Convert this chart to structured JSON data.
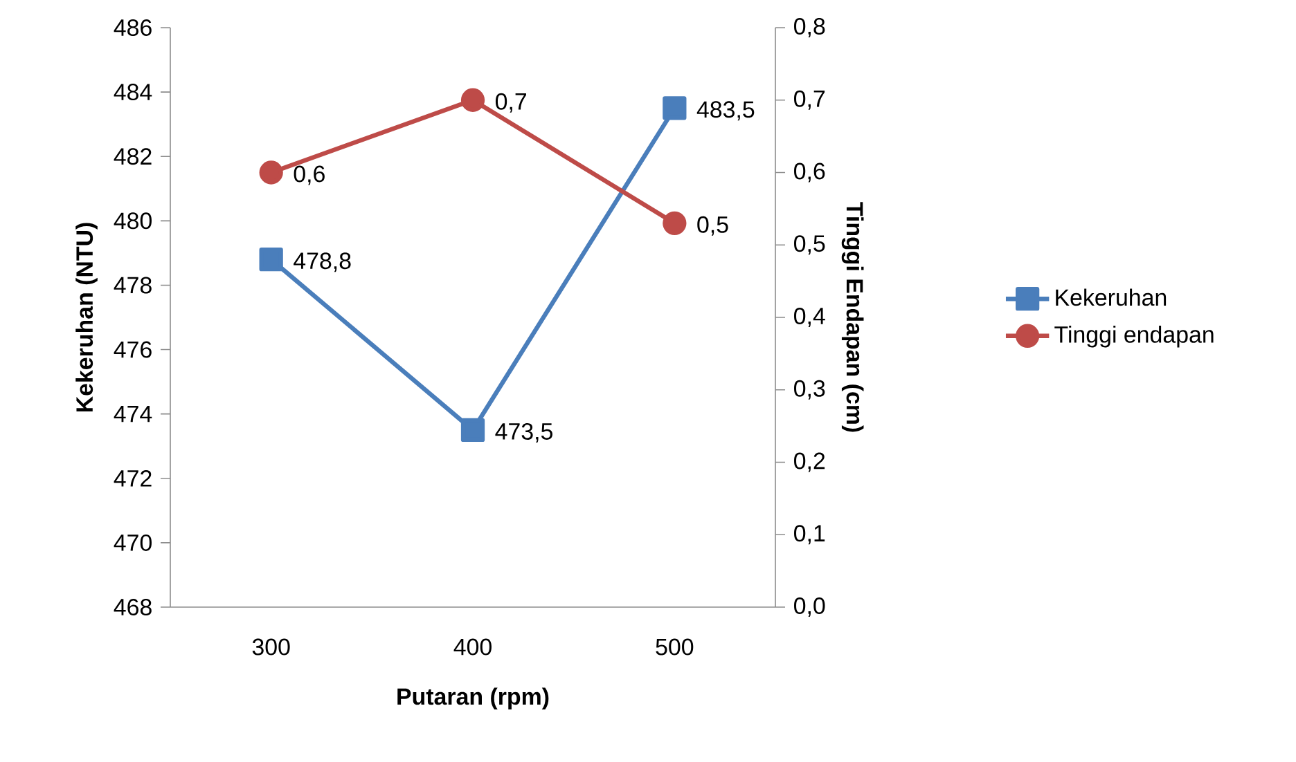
{
  "chart_data": {
    "type": "line",
    "xlabel": "Putaran (rpm)",
    "ylabel": "Kekeruhan (NTU)",
    "y2label": "Tinggi Endapan (cm)",
    "categories": [
      "300",
      "400",
      "500"
    ],
    "series": [
      {
        "name": "Kekeruhan",
        "color": "#4a7ebb",
        "marker": "square",
        "values": [
          478.8,
          473.5,
          483.5
        ],
        "value_labels": [
          "478,8",
          "473,5",
          "483,5"
        ]
      },
      {
        "name": "Tinggi endapan",
        "color": "#be4b48",
        "marker": "circle",
        "axis": "y2",
        "values": [
          0.6,
          0.7,
          0.53
        ],
        "value_labels": [
          "0,6",
          "0,7",
          "0,5"
        ]
      }
    ],
    "ylim": [
      468,
      486
    ],
    "yticks": [
      468,
      470,
      472,
      474,
      476,
      478,
      480,
      482,
      484,
      486
    ],
    "y2lim": [
      0,
      0.8
    ],
    "y2ticks": [
      {
        "value": 0,
        "label": "0,0"
      },
      {
        "value": 0.1,
        "label": "0,1"
      },
      {
        "value": 0.2,
        "label": "0,2"
      },
      {
        "value": 0.3,
        "label": "0,3"
      },
      {
        "value": 0.4,
        "label": "0,4"
      },
      {
        "value": 0.5,
        "label": "0,5"
      },
      {
        "value": 0.6,
        "label": "0,6"
      },
      {
        "value": 0.7,
        "label": "0,7"
      },
      {
        "value": 0.8,
        "label": "0,8"
      }
    ],
    "legend": "right",
    "grid": false,
    "line_style": "solid"
  }
}
